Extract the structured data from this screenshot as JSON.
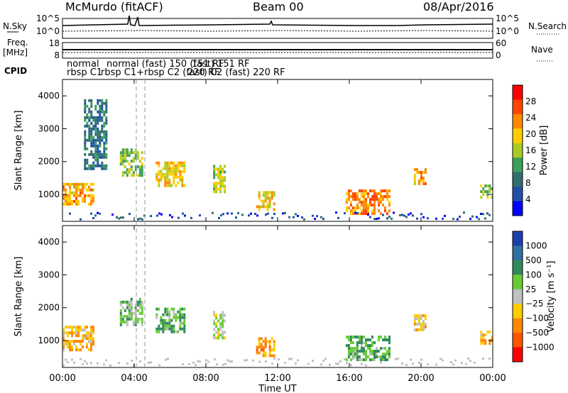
{
  "header": {
    "station": "McMurdo (fitACF)",
    "beam": "Beam 00",
    "date": "08/Apr/2016"
  },
  "noise_panel": {
    "left_label": "N.Sky",
    "right_label": "N.Search",
    "left_ticks": [
      "10^5",
      "10^0"
    ],
    "right_ticks": [
      "10^5",
      "10^0"
    ]
  },
  "freq_panel": {
    "left_label_1": "Freq.",
    "left_label_2": "[MHz]",
    "right_label": "Nave",
    "left_ticks": [
      "18",
      "8"
    ],
    "right_ticks": [
      "60",
      "0"
    ]
  },
  "cpid_panel": {
    "label": "CPID",
    "row1_text": "normal (fast) 150 (fast) 151 RF",
    "row2_text": "rbsp C1+rbsp C2 (fast) C2 (fast) 220 RF",
    "row1_prefix": "normal",
    "row2_prefix": "rbsp C1",
    "row1_suffix": "151  RF",
    "row2_suffix": "220  RF"
  },
  "x_axis": {
    "label": "Time UT",
    "ticks": [
      "00:00",
      "04:00",
      "08:00",
      "12:00",
      "16:00",
      "20:00",
      "00:00"
    ]
  },
  "power_panel": {
    "ylabel": "Slant Range [km]",
    "yticks": [
      "4000",
      "3000",
      "2000",
      "1000"
    ],
    "colorbar_label": "Power [dB]",
    "colorbar_ticks": [
      "28",
      "24",
      "20",
      "16",
      "12",
      "8",
      "4"
    ],
    "colors": [
      "#0000ff",
      "#1f4fa6",
      "#2e6e6e",
      "#3aa05a",
      "#aacc22",
      "#ffcc00",
      "#ff8800",
      "#ff4400",
      "#ff0000"
    ]
  },
  "velocity_panel": {
    "ylabel": "Slant Range [km]",
    "yticks": [
      "4000",
      "3000",
      "2000",
      "1000"
    ],
    "colorbar_label": "Velocity [m s⁻¹]",
    "colorbar_ticks": [
      "1000",
      "500",
      "100",
      "25",
      "−25",
      "−100",
      "−500",
      "−1000"
    ],
    "colors": [
      "#1a3fb0",
      "#2e70a0",
      "#2f8a5a",
      "#66cc33",
      "#c0c0c0",
      "#ffcc00",
      "#ff8800",
      "#ff5500",
      "#ff0000"
    ]
  },
  "chart_data": [
    {
      "type": "heatmap",
      "title": "Power",
      "xlabel": "Time UT",
      "ylabel": "Slant Range [km]",
      "xlim": [
        0,
        24
      ],
      "ylim": [
        180,
        4500
      ],
      "colorbar": {
        "label": "Power [dB]",
        "range": [
          0,
          30
        ],
        "ticks": [
          4,
          8,
          12,
          16,
          20,
          24,
          28
        ]
      },
      "regions": [
        {
          "t0": 0.0,
          "t1": 1.7,
          "r0": 700,
          "r1": 1350,
          "value": 20
        },
        {
          "t0": 1.2,
          "t1": 2.4,
          "r0": 1800,
          "r1": 3900,
          "value": 8
        },
        {
          "t0": 3.2,
          "t1": 4.4,
          "r0": 1600,
          "r1": 2400,
          "value": 14
        },
        {
          "t0": 5.2,
          "t1": 6.8,
          "r0": 1300,
          "r1": 2000,
          "value": 18
        },
        {
          "t0": 8.4,
          "t1": 9.0,
          "r0": 1100,
          "r1": 1900,
          "value": 16
        },
        {
          "t0": 10.8,
          "t1": 11.8,
          "r0": 500,
          "r1": 1100,
          "value": 18
        },
        {
          "t0": 15.8,
          "t1": 18.2,
          "r0": 400,
          "r1": 1150,
          "value": 22
        },
        {
          "t0": 19.6,
          "t1": 20.2,
          "r0": 1300,
          "r1": 1800,
          "value": 20
        },
        {
          "t0": 23.3,
          "t1": 24.0,
          "r0": 900,
          "r1": 1300,
          "value": 14
        }
      ]
    },
    {
      "type": "heatmap",
      "title": "Velocity",
      "xlabel": "Time UT",
      "ylabel": "Slant Range [km]",
      "xlim": [
        0,
        24
      ],
      "ylim": [
        180,
        4500
      ],
      "colorbar": {
        "label": "Velocity [m s⁻¹]",
        "range": [
          -1000,
          1000
        ],
        "ticks": [
          1000,
          500,
          100,
          25,
          -25,
          -100,
          -500,
          -1000
        ]
      },
      "regions": [
        {
          "t0": 0.0,
          "t1": 1.7,
          "r0": 700,
          "r1": 1450,
          "value": -300
        },
        {
          "t0": 3.2,
          "t1": 4.4,
          "r0": 1500,
          "r1": 2300,
          "value": 200
        },
        {
          "t0": 5.2,
          "t1": 6.8,
          "r0": 1300,
          "r1": 2000,
          "value": 300
        },
        {
          "t0": 8.4,
          "t1": 9.0,
          "r0": 1100,
          "r1": 1900,
          "value": 50
        },
        {
          "t0": 10.8,
          "t1": 11.8,
          "r0": 500,
          "r1": 1100,
          "value": -400
        },
        {
          "t0": 15.8,
          "t1": 18.2,
          "r0": 400,
          "r1": 1150,
          "value": 300
        },
        {
          "t0": 19.6,
          "t1": 20.2,
          "r0": 1300,
          "r1": 1800,
          "value": -200
        },
        {
          "t0": 23.3,
          "t1": 24.0,
          "r0": 900,
          "r1": 1300,
          "value": -300
        }
      ]
    }
  ]
}
